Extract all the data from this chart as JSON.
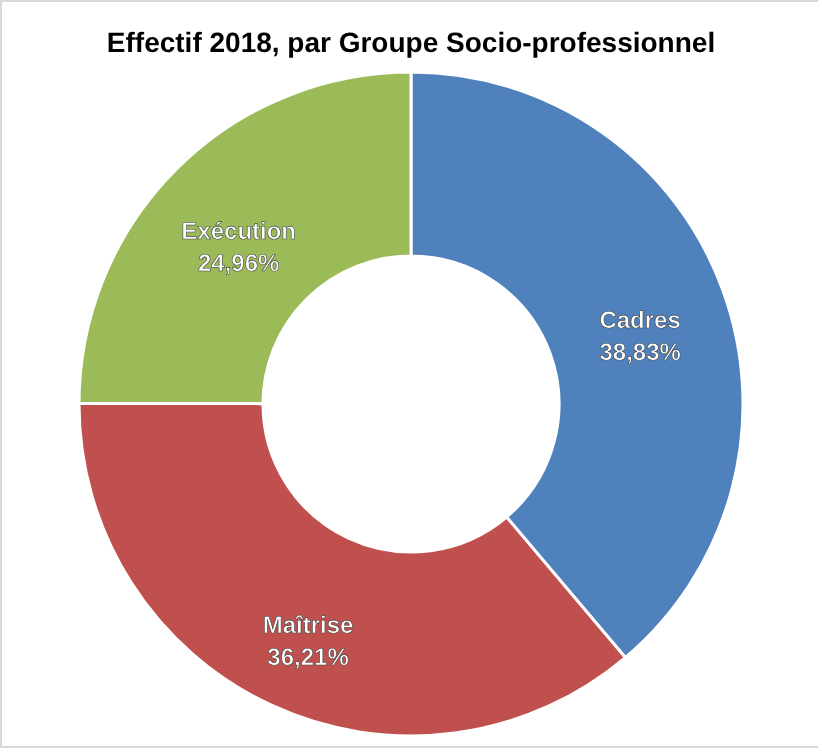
{
  "chart_data": {
    "type": "donut",
    "title": "Effectif 2018, par Groupe Socio-professionnel",
    "categories": [
      "Cadres",
      "Maîtrise",
      "Exécution"
    ],
    "values": [
      38.83,
      36.21,
      24.96
    ],
    "colors": [
      "#4f81bd",
      "#c0504d",
      "#9bbb59"
    ],
    "value_labels": [
      "38,83%",
      "36,21%",
      "24,96%"
    ],
    "legend": false
  }
}
